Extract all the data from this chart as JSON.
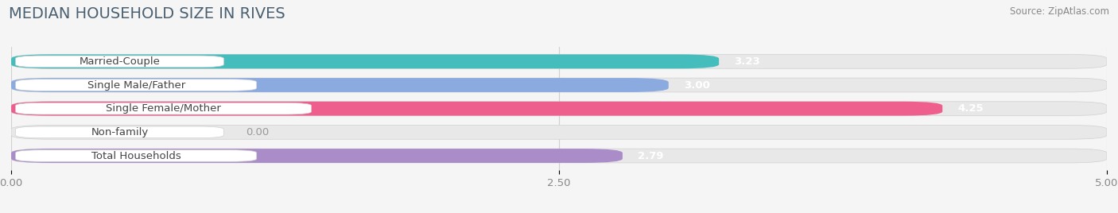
{
  "title": "MEDIAN HOUSEHOLD SIZE IN RIVES",
  "source": "Source: ZipAtlas.com",
  "categories": [
    "Married-Couple",
    "Single Male/Father",
    "Single Female/Mother",
    "Non-family",
    "Total Households"
  ],
  "values": [
    3.23,
    3.0,
    4.25,
    0.0,
    2.79
  ],
  "bar_colors": [
    "#45BDBD",
    "#8AAAE0",
    "#EE5F8E",
    "#F5C89A",
    "#A98CC8"
  ],
  "xlim_max": 5.0,
  "xticks": [
    0.0,
    2.5,
    5.0
  ],
  "xtick_labels": [
    "0.00",
    "2.50",
    "5.00"
  ],
  "title_fontsize": 14,
  "label_fontsize": 9.5,
  "value_fontsize": 9.5,
  "background_color": "#f5f5f5",
  "bar_bg_color": "#e8e8e8",
  "title_color": "#4a6070",
  "label_box_color": "#ffffff",
  "grid_color": "#d0d0d0"
}
